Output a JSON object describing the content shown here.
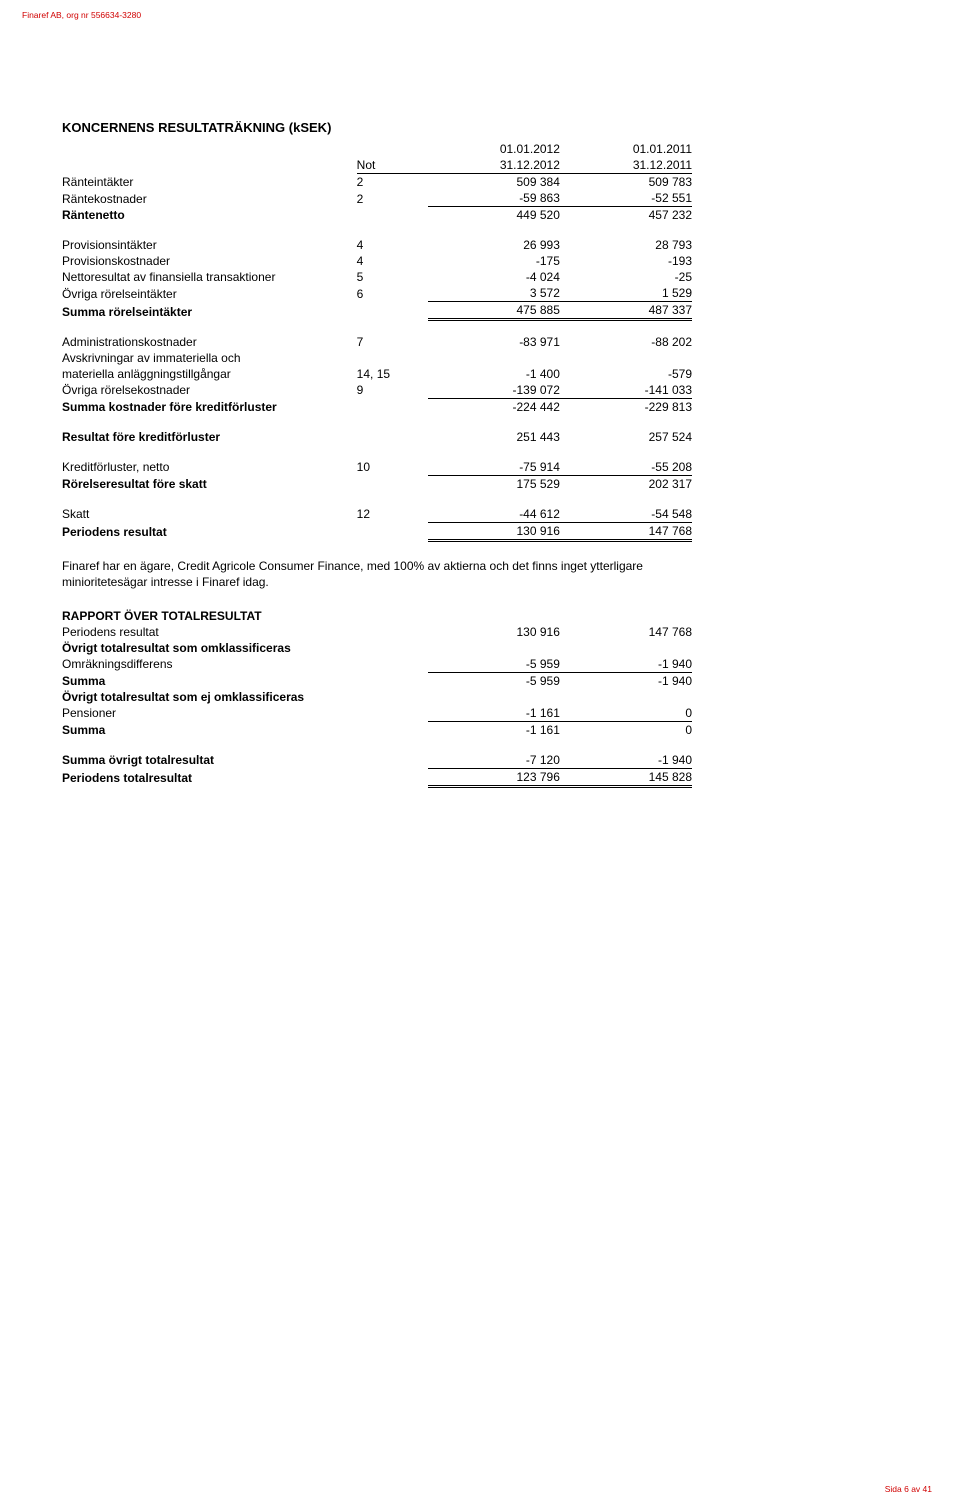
{
  "header": "Finaref AB, org nr 556634-3280",
  "footer": "Sida 6 av 41",
  "title": "KONCERNENS RESULTATRÄKNING (kSEK)",
  "columns": {
    "not": "Not",
    "period1_top": "01.01.2012",
    "period1_bot": "31.12.2012",
    "period2_top": "01.01.2011",
    "period2_bot": "31.12.2011"
  },
  "rows": {
    "ranteintakter": {
      "label": "Ränteintäkter",
      "not": "2",
      "v1": "509 384",
      "v2": "509 783"
    },
    "rantekostnader": {
      "label": "Räntekostnader",
      "not": "2",
      "v1": "-59 863",
      "v2": "-52 551"
    },
    "rantenetto": {
      "label": "Räntenetto",
      "not": "",
      "v1": "449 520",
      "v2": "457 232"
    },
    "provisionsintakter": {
      "label": "Provisionsintäkter",
      "not": "4",
      "v1": "26 993",
      "v2": "28 793"
    },
    "provisionskostnader": {
      "label": "Provisionskostnader",
      "not": "4",
      "v1": "-175",
      "v2": "-193"
    },
    "nettoresultat": {
      "label": "Nettoresultat av finansiella transaktioner",
      "not": "5",
      "v1": "-4 024",
      "v2": "-25"
    },
    "ovr_rorelseint": {
      "label": "Övriga rörelseintäkter",
      "not": "6",
      "v1": "3 572",
      "v2": "1 529"
    },
    "summa_rorelseint": {
      "label": "Summa rörelseintäkter",
      "not": "",
      "v1": "475 885",
      "v2": "487 337"
    },
    "adminkost": {
      "label": "Administrationskostnader",
      "not": "7",
      "v1": "-83 971",
      "v2": "-88 202"
    },
    "avskrivn1": {
      "label": "Avskrivningar av immateriella och"
    },
    "avskrivn2": {
      "label": "materiella anläggningstillgångar",
      "not": "14, 15",
      "v1": "-1 400",
      "v2": "-579"
    },
    "ovr_rorelsekost": {
      "label": "Övriga rörelsekostnader",
      "not": "9",
      "v1": "-139 072",
      "v2": "-141 033"
    },
    "summa_kost": {
      "label": "Summa kostnader före kreditförluster",
      "not": "",
      "v1": "-224 442",
      "v2": "-229 813"
    },
    "res_fore_kredit": {
      "label": "Resultat före kreditförluster",
      "not": "",
      "v1": "251 443",
      "v2": "257 524"
    },
    "kreditforluster": {
      "label": "Kreditförluster, netto",
      "not": "10",
      "v1": "-75 914",
      "v2": "-55 208"
    },
    "rorelseres": {
      "label": "Rörelseresultat före skatt",
      "not": "",
      "v1": "175 529",
      "v2": "202 317"
    },
    "skatt": {
      "label": "Skatt",
      "not": "12",
      "v1": "-44 612",
      "v2": "-54 548"
    },
    "periodres": {
      "label": "Periodens resultat",
      "not": "",
      "v1": "130 916",
      "v2": "147 768"
    }
  },
  "note_paragraph": "Finaref har en ägare, Credit Agricole Consumer Finance, med 100% av aktierna och det finns inget ytterligare minioritetesägar intresse i Finaref idag.",
  "rapport": {
    "title": "RAPPORT ÖVER TOTALRESULTAT",
    "periodres": {
      "label": "Periodens resultat",
      "v1": "130 916",
      "v2": "147 768"
    },
    "ovr_omkl": {
      "label": "Övrigt totalresultat som omklassificeras"
    },
    "omrakning": {
      "label": "Omräkningsdifferens",
      "v1": "-5 959",
      "v2": "-1 940"
    },
    "summa1": {
      "label": "Summa",
      "v1": "-5 959",
      "v2": "-1 940"
    },
    "ovr_ej_omkl": {
      "label": "Övrigt totalresultat som ej omklassificeras"
    },
    "pensioner": {
      "label": "Pensioner",
      "v1": "-1 161",
      "v2": "0"
    },
    "summa2": {
      "label": "Summa",
      "v1": "-1 161",
      "v2": "0"
    },
    "summa_ovr": {
      "label": "Summa övrigt totalresultat",
      "v1": "-7 120",
      "v2": "-1 940"
    },
    "period_tot": {
      "label": "Periodens totalresultat",
      "v1": "123 796",
      "v2": "145 828"
    }
  }
}
